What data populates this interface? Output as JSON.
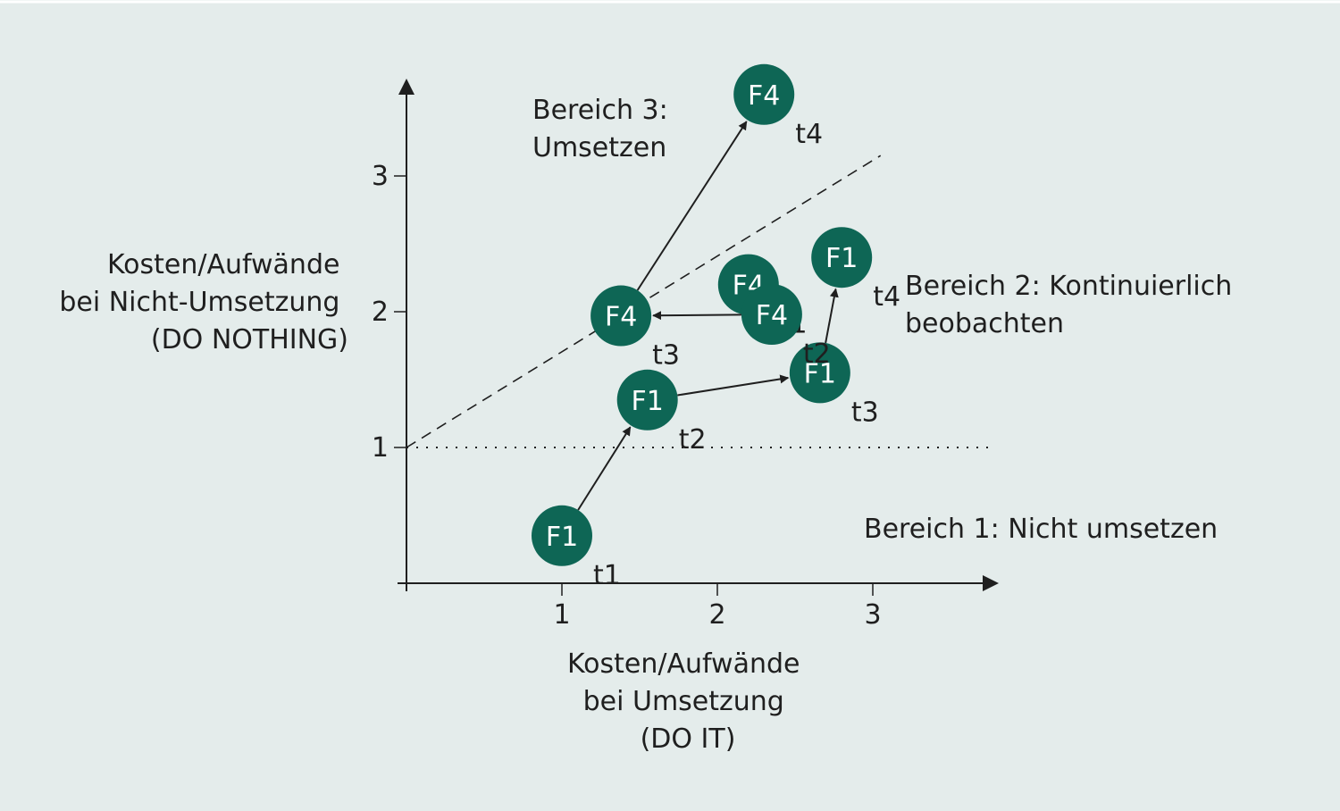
{
  "colors": {
    "background": "#e4eceb",
    "node": "#0e6655",
    "ink": "#1f1f1f"
  },
  "axes": {
    "x_label": [
      "Kosten/Aufwände",
      "bei Umsetzung",
      "(DO IT)"
    ],
    "y_label": [
      "Kosten/Aufwände",
      "bei Nicht-Umsetzung",
      "(DO NOTHING)"
    ],
    "x_ticks": [
      "1",
      "2",
      "3"
    ],
    "y_ticks": [
      "1",
      "2",
      "3"
    ]
  },
  "regions": {
    "region3": [
      "Bereich 3:",
      "Umsetzen"
    ],
    "region2": [
      "Bereich 2: Kontinuierlich",
      "beobachten"
    ],
    "region1": "Bereich 1: Nicht umsetzen"
  },
  "nodes": [
    {
      "id": "f1-t1",
      "label": "F1",
      "time": "t1",
      "x": 1.0,
      "y": 0.35
    },
    {
      "id": "f1-t2",
      "label": "F1",
      "time": "t2",
      "x": 1.55,
      "y": 1.35
    },
    {
      "id": "f1-t3",
      "label": "F1",
      "time": "t3",
      "x": 2.66,
      "y": 1.55
    },
    {
      "id": "f1-t4",
      "label": "F1",
      "time": "t4",
      "x": 2.8,
      "y": 2.4
    },
    {
      "id": "f4-t1",
      "label": "F4",
      "time": "t1",
      "x": 2.2,
      "y": 2.2
    },
    {
      "id": "f4-t2",
      "label": "F4",
      "time": "t2",
      "x": 2.35,
      "y": 1.98
    },
    {
      "id": "f4-t3",
      "label": "F4",
      "time": "t3",
      "x": 1.38,
      "y": 1.97
    },
    {
      "id": "f4-t4",
      "label": "F4",
      "time": "t4",
      "x": 2.3,
      "y": 3.6
    }
  ],
  "arrows": [
    {
      "from": "f1-t1",
      "to": "f1-t2"
    },
    {
      "from": "f1-t2",
      "to": "f1-t3"
    },
    {
      "from": "f1-t3",
      "to": "f1-t4"
    },
    {
      "from": "f4-t1",
      "to": "f4-t2"
    },
    {
      "from": "f4-t2",
      "to": "f4-t3"
    },
    {
      "from": "f4-t3",
      "to": "f4-t4"
    }
  ],
  "reference_lines": {
    "dotted_horizontal_y": 1,
    "dashed_diagonal": {
      "from": [
        0,
        1
      ],
      "to": [
        3.05,
        3.15
      ]
    }
  }
}
